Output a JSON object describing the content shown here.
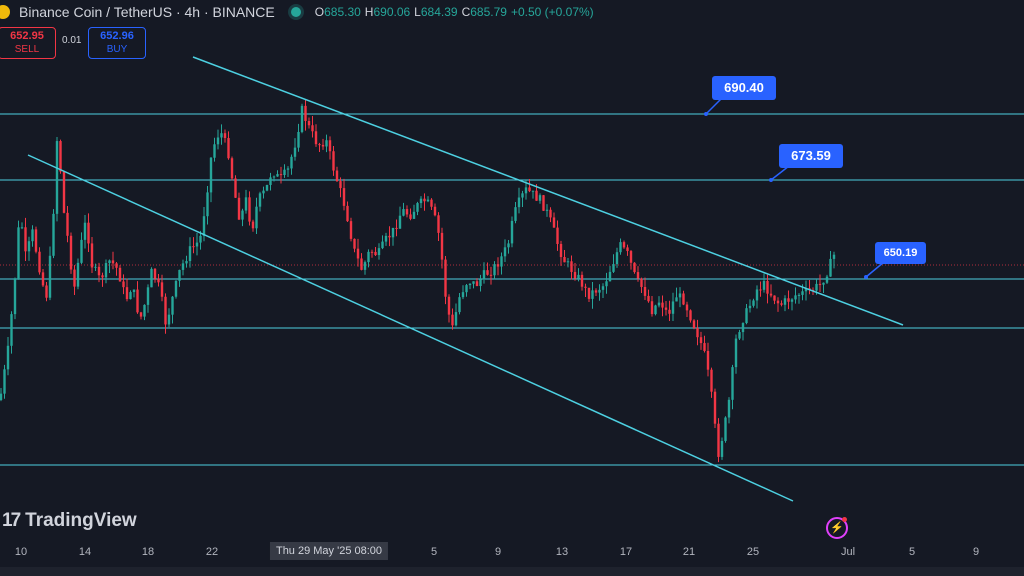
{
  "header": {
    "symbol": "Binance Coin / TetherUS · 4h · BINANCE",
    "ohlc": [
      {
        "k": "O",
        "v": "685.30"
      },
      {
        "k": "H",
        "v": "690.06"
      },
      {
        "k": "L",
        "v": "684.39"
      },
      {
        "k": "C",
        "v": "685.79"
      },
      {
        "k": "",
        "v": "+0.50 (+0.07%)"
      }
    ]
  },
  "trade": {
    "sell_price": "652.95",
    "sell_label": "SELL",
    "spread": "0.01",
    "buy_price": "652.96",
    "buy_label": "BUY"
  },
  "logo_text": "TradingView",
  "logo_mark": "17",
  "xaxis": {
    "ticks": [
      "10",
      "14",
      "18",
      "22",
      "Thu 29 May '25   08:00",
      "5",
      "9",
      "13",
      "17",
      "21",
      "25",
      "Jul",
      "5",
      "9"
    ]
  },
  "chart_data": {
    "type": "candlestick",
    "horizontal_levels": [
      690.4,
      673.59,
      650.19
    ],
    "price_labels": [
      "690.40",
      "673.59",
      "650.19"
    ],
    "colors": {
      "up": "#26a69a",
      "down": "#f23645",
      "lines": "#4dd0e1",
      "label_bg": "#2962ff",
      "background": "#151924"
    }
  }
}
